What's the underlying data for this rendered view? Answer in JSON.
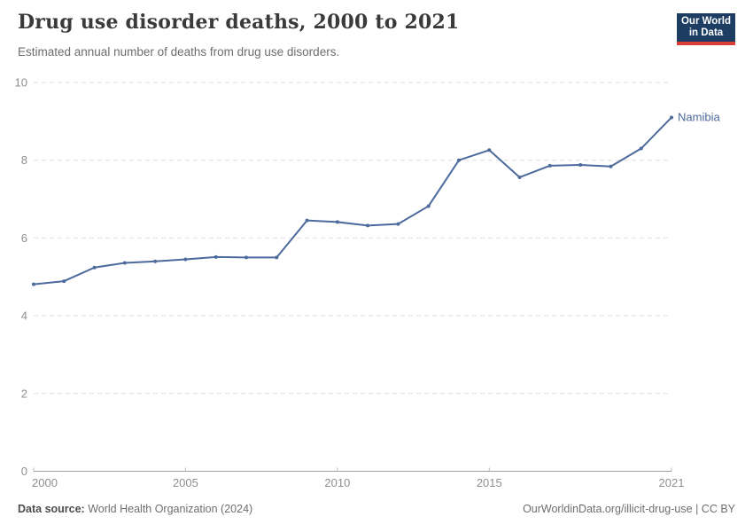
{
  "header": {
    "title": "Drug use disorder deaths, 2000 to 2021",
    "subtitle": "Estimated annual number of deaths from drug use disorders.",
    "logo": {
      "line1": "Our World",
      "line2": "in Data"
    }
  },
  "chart_data": {
    "type": "line",
    "title": "Drug use disorder deaths, 2000 to 2021",
    "xlabel": "",
    "ylabel": "",
    "xlim": [
      2000,
      2021
    ],
    "ylim": [
      0,
      10
    ],
    "xticks": [
      2000,
      2005,
      2010,
      2015,
      2021
    ],
    "yticks": [
      0,
      2,
      4,
      6,
      8,
      10
    ],
    "grid": "horizontal-dashed",
    "legend_position": "end-of-line-label",
    "series": [
      {
        "name": "Namibia",
        "color": "#4c6a9c",
        "x": [
          2000,
          2001,
          2002,
          2003,
          2004,
          2005,
          2006,
          2007,
          2008,
          2009,
          2010,
          2011,
          2012,
          2013,
          2014,
          2015,
          2016,
          2017,
          2018,
          2019,
          2020,
          2021
        ],
        "values": [
          4.81,
          4.89,
          5.24,
          5.36,
          5.4,
          5.45,
          5.51,
          5.5,
          5.5,
          6.45,
          6.41,
          6.32,
          6.36,
          6.82,
          8.0,
          8.26,
          7.56,
          7.86,
          7.88,
          7.84,
          8.3,
          9.1
        ]
      }
    ]
  },
  "footer": {
    "source_label": "Data source:",
    "source": "World Health Organization (2024)",
    "url": "OurWorldinData.org/illicit-drug-use",
    "separator": "|",
    "license": "CC BY"
  },
  "colors": {
    "logo_navy": "#1d3d63",
    "logo_red": "#dc3e36",
    "series_blue": "#4c6a9c",
    "gridline": "#dedede",
    "axis": "#a1a1a1"
  }
}
